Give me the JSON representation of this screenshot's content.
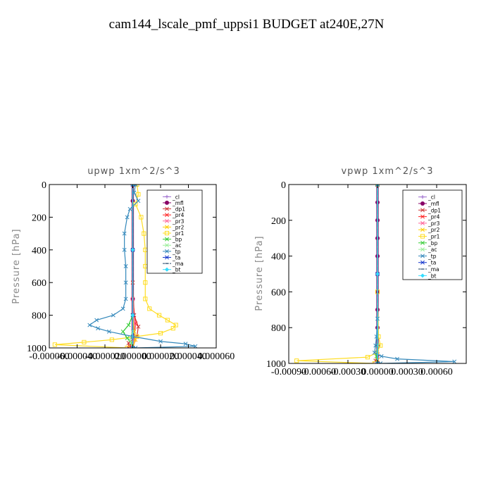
{
  "figure": {
    "title": "cam144_lscale_pmf_uppsi1  BUDGET at240E,27N"
  },
  "chart_data": [
    {
      "type": "line",
      "title": "upwp   1xm^2/s^3",
      "ylabel": "Pressure [hPa]",
      "ylim": [
        1000,
        0
      ],
      "yticks": [
        "0",
        "200",
        "400",
        "600",
        "800",
        "1000"
      ],
      "yticks_values": [
        0,
        200,
        400,
        600,
        800,
        1000
      ],
      "xlim": [
        -6e-05,
        6e-05
      ],
      "xticks": [
        "-0.000060",
        "-0.000040",
        "-0.000020",
        "0.000000",
        "0.000020",
        "0.000040",
        "0.000060"
      ],
      "xticks_values": [
        -6e-05,
        -4e-05,
        -2e-05,
        0.0,
        2e-05,
        4e-05,
        6e-05
      ],
      "legend_position": "top-right",
      "series": [
        {
          "name": "_cl",
          "color": "#9966cc",
          "marker": "plus",
          "y": [
            0,
            100,
            400,
            700,
            1000
          ],
          "x": [
            0,
            0,
            0,
            0,
            0
          ]
        },
        {
          "name": "_mfl",
          "color": "#880066",
          "marker": "dot",
          "y": [
            0,
            100,
            400,
            700,
            1000
          ],
          "x": [
            0,
            0,
            0,
            0,
            0
          ]
        },
        {
          "name": "_dp1",
          "color": "#cc3333",
          "marker": "x",
          "y": [
            0,
            600,
            800,
            870,
            930,
            970,
            1000
          ],
          "x": [
            0,
            0,
            1e-06,
            4e-06,
            3e-06,
            -3e-06,
            -3e-06
          ]
        },
        {
          "name": "_pr4",
          "color": "#ff2222",
          "marker": "x",
          "y": [
            0,
            700,
            850,
            950,
            990,
            1000
          ],
          "x": [
            0,
            0,
            2e-06,
            1e-06,
            -2e-06,
            0
          ]
        },
        {
          "name": "_pr3",
          "color": "#ff6699",
          "marker": "x",
          "y": [
            0,
            700,
            850,
            950,
            1000
          ],
          "x": [
            0,
            0,
            1e-06,
            1e-06,
            0
          ]
        },
        {
          "name": "_pr2",
          "color": "#ffcc00",
          "marker": "x",
          "y": [
            0,
            800,
            900,
            950,
            1000
          ],
          "x": [
            0,
            0,
            1e-06,
            2e-06,
            0
          ]
        },
        {
          "name": "_pr1",
          "color": "#ffdd22",
          "marker": "square",
          "y": [
            0,
            60,
            120,
            200,
            300,
            400,
            500,
            600,
            700,
            760,
            800,
            830,
            860,
            880,
            910,
            930,
            950,
            965,
            980,
            1000
          ],
          "x": [
            3e-06,
            4e-06,
            2e-06,
            6e-06,
            8e-06,
            9e-06,
            9e-06,
            9e-06,
            9e-06,
            1.2e-05,
            1.9e-05,
            2.5e-05,
            3.1e-05,
            2.9e-05,
            2e-05,
            3e-06,
            -1.5e-05,
            -3.5e-05,
            -5.6e-05,
            -4e-06
          ]
        },
        {
          "name": "_bp",
          "color": "#33cc33",
          "marker": "x",
          "y": [
            0,
            800,
            860,
            900,
            940,
            970,
            1000
          ],
          "x": [
            0,
            0,
            -3e-06,
            -7e-06,
            -4e-06,
            -1e-06,
            0
          ]
        },
        {
          "name": "_ac",
          "color": "#99ee99",
          "marker": "x",
          "y": [
            0,
            900,
            950,
            1000
          ],
          "x": [
            0,
            0,
            -2e-06,
            0
          ]
        },
        {
          "name": "_tp",
          "color": "#3388bb",
          "marker": "x",
          "y": [
            0,
            50,
            100,
            150,
            200,
            300,
            400,
            500,
            600,
            700,
            760,
            800,
            830,
            860,
            880,
            900,
            930,
            960,
            975,
            990,
            1000
          ],
          "x": [
            2e-06,
            1e-06,
            4e-06,
            -2e-06,
            -4e-06,
            -6e-06,
            -6e-06,
            -5e-06,
            -5e-06,
            -5e-06,
            -7e-06,
            -1.4e-05,
            -2.6e-05,
            -3.1e-05,
            -2.5e-05,
            -1.7e-05,
            0.0,
            2e-05,
            3.8e-05,
            4.5e-05,
            2e-06
          ]
        },
        {
          "name": "_ta",
          "color": "#1133cc",
          "marker": "x",
          "y": [
            0,
            400,
            800,
            1000
          ],
          "x": [
            0,
            0,
            0,
            0
          ]
        },
        {
          "name": "_ma",
          "color": "#224466",
          "marker": "dash",
          "y": [
            0,
            400,
            800,
            1000
          ],
          "x": [
            0,
            0,
            0,
            0
          ]
        },
        {
          "name": "_bt",
          "color": "#33ddff",
          "marker": "diamond",
          "y": [
            0,
            400,
            800,
            1000
          ],
          "x": [
            0,
            0,
            0,
            0
          ]
        }
      ]
    },
    {
      "type": "line",
      "title": "vpwp   1xm^2/s^3",
      "ylabel": "Pressure [hPa]",
      "ylim": [
        1000,
        0
      ],
      "yticks": [
        "0",
        "200",
        "400",
        "600",
        "800",
        "1000"
      ],
      "yticks_values": [
        0,
        200,
        400,
        600,
        800,
        1000
      ],
      "xlim": [
        -0.0009,
        0.0009
      ],
      "xticks": [
        "-0.00090",
        "-0.00060",
        "-0.00030",
        "0.00000",
        "0.00030",
        "0.00060"
      ],
      "xticks_values": [
        -0.0009,
        -0.0006,
        -0.0003,
        0.0,
        0.0003,
        0.0006
      ],
      "legend_position": "top-right",
      "series": [
        {
          "name": "_cl",
          "color": "#9966cc",
          "marker": "plus",
          "y": [
            0,
            500,
            1000
          ],
          "x": [
            0,
            0,
            0
          ]
        },
        {
          "name": "_mfl",
          "color": "#880066",
          "marker": "dot",
          "y": [
            0,
            100,
            200,
            300,
            400,
            500,
            600,
            700,
            800,
            900,
            1000
          ],
          "x": [
            0,
            0,
            0,
            0,
            0,
            0,
            0,
            0,
            0,
            0,
            0
          ]
        },
        {
          "name": "_dp1",
          "color": "#cc3333",
          "marker": "x",
          "y": [
            0,
            950,
            985,
            1000
          ],
          "x": [
            0,
            0,
            -2e-05,
            0
          ]
        },
        {
          "name": "_pr4",
          "color": "#ff2222",
          "marker": "x",
          "y": [
            0,
            980,
            1000
          ],
          "x": [
            0,
            0,
            0
          ]
        },
        {
          "name": "_pr3",
          "color": "#ff6699",
          "marker": "x",
          "y": [
            0,
            980,
            1000
          ],
          "x": [
            0,
            0,
            0
          ]
        },
        {
          "name": "_pr2",
          "color": "#ffcc00",
          "marker": "x",
          "y": [
            0,
            980,
            1000
          ],
          "x": [
            0,
            0,
            0
          ]
        },
        {
          "name": "_pr1",
          "color": "#ffdd22",
          "marker": "square",
          "y": [
            0,
            600,
            850,
            900,
            940,
            965,
            985,
            1000
          ],
          "x": [
            0,
            0,
            1e-05,
            3e-05,
            -1e-05,
            -0.0001,
            -0.00082,
            -3e-05
          ]
        },
        {
          "name": "_bp",
          "color": "#33cc33",
          "marker": "x",
          "y": [
            0,
            900,
            960,
            1000
          ],
          "x": [
            0,
            0,
            -1e-05,
            0
          ]
        },
        {
          "name": "_ac",
          "color": "#99ee99",
          "marker": "x",
          "y": [
            0,
            900,
            1000
          ],
          "x": [
            0,
            0,
            0
          ]
        },
        {
          "name": "_tp",
          "color": "#3388bb",
          "marker": "x",
          "y": [
            0,
            750,
            850,
            900,
            940,
            960,
            975,
            990,
            1000
          ],
          "x": [
            0,
            0,
            -1e-05,
            -2e-05,
            -3e-05,
            4e-05,
            0.0002,
            0.00078,
            3e-05
          ]
        },
        {
          "name": "_ta",
          "color": "#1133cc",
          "marker": "x",
          "y": [
            0,
            500,
            1000
          ],
          "x": [
            0,
            0,
            0
          ]
        },
        {
          "name": "_ma",
          "color": "#224466",
          "marker": "dash",
          "y": [
            0,
            500,
            1000
          ],
          "x": [
            0,
            0,
            0
          ]
        },
        {
          "name": "_bt",
          "color": "#33ddff",
          "marker": "diamond",
          "y": [
            0,
            500,
            1000
          ],
          "x": [
            0,
            0,
            0
          ]
        }
      ]
    }
  ]
}
